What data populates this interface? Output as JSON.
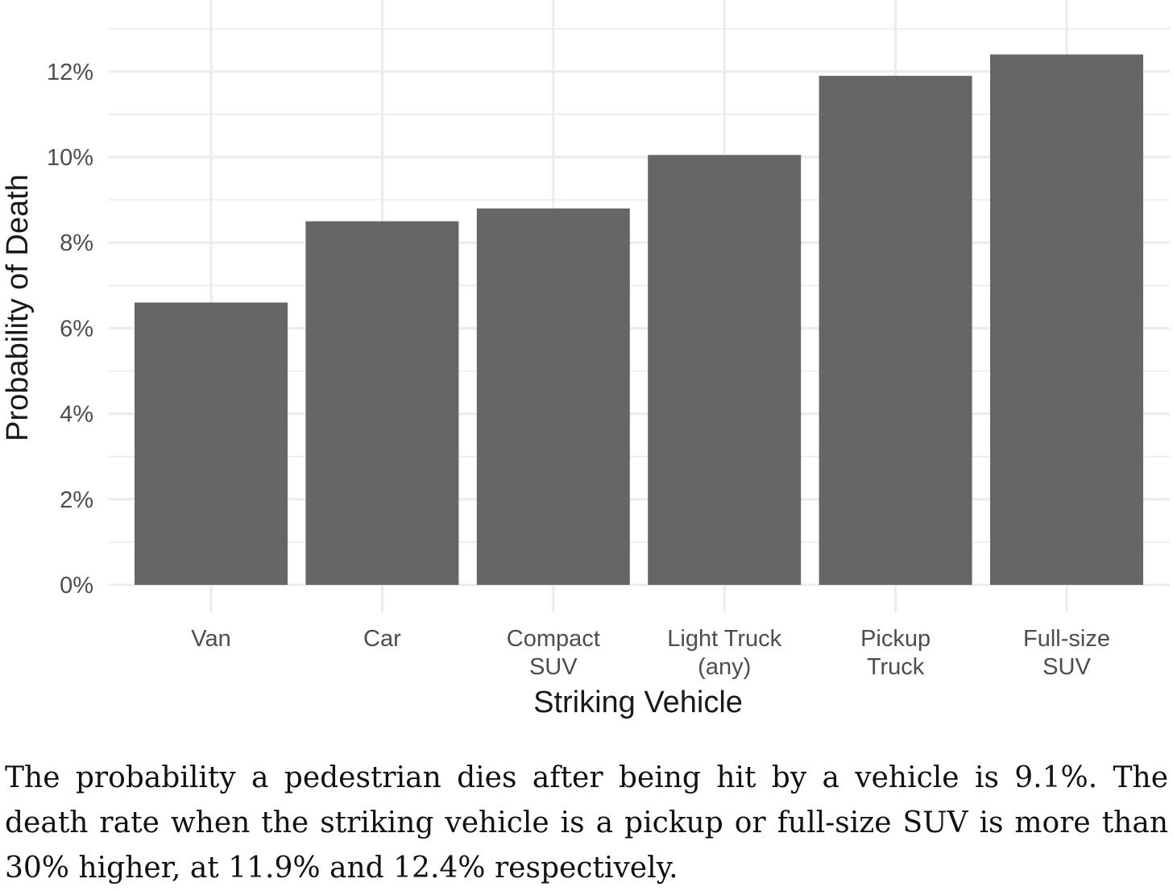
{
  "chart_data": {
    "type": "bar",
    "categories": [
      [
        "Van"
      ],
      [
        "Car"
      ],
      [
        "Compact",
        "SUV"
      ],
      [
        "Light Truck",
        "(any)"
      ],
      [
        "Pickup",
        "Truck"
      ],
      [
        "Full-size",
        "SUV"
      ]
    ],
    "values": [
      6.6,
      8.5,
      8.8,
      10.05,
      11.9,
      12.4
    ],
    "value_unit": "%",
    "ylim": [
      0,
      13
    ],
    "yticks": [
      0,
      2,
      4,
      6,
      8,
      10,
      12
    ],
    "ytick_labels": [
      "0%",
      "2%",
      "4%",
      "6%",
      "8%",
      "10%",
      "12%"
    ],
    "xlabel": "Striking Vehicle",
    "ylabel": "Probability of Death",
    "title": "",
    "grid": true,
    "legend": "none",
    "bar_color": "#666668",
    "grid_color": "#ebebeb"
  },
  "caption": "The probability a pedestrian dies after being hit by a vehicle is 9.1%. The death rate when the striking vehicle is a pickup or full-size SUV is more than 30% higher, at 11.9% and 12.4% respectively."
}
